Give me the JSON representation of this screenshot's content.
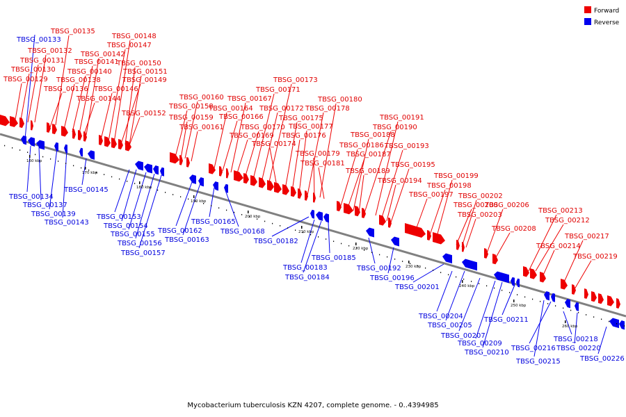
{
  "colors": {
    "forward": "#ee0000",
    "reverse": "#0000ee",
    "backbone": "#808080"
  },
  "legend": {
    "forward": "Forward",
    "reverse": "Reverse"
  },
  "caption": "Mycobacterium tuberculosis KZN 4207, complete genome. - 0..4394985",
  "ticks": [
    "160 kbp",
    "170 kbp",
    "180 kbp",
    "190 kbp",
    "200 kbp",
    "210 kbp",
    "220 kbp",
    "230 kbp",
    "240 kbp",
    "250 kbp",
    "260 kbp"
  ],
  "forward_labels": [
    "TBSG_00129",
    "TBSG_00130",
    "TBSG_00131",
    "TBSG_00132",
    "TBSG_00135",
    "TBSG_00136",
    "TBSG_00138",
    "TBSG_00140",
    "TBSG_00141",
    "TBSG_00142",
    "TBSG_00144",
    "TBSG_00146",
    "TBSG_00147",
    "TBSG_00148",
    "TBSG_00149",
    "TBSG_00150",
    "TBSG_00151",
    "TBSG_00152",
    "TBSG_00158",
    "TBSG_00159",
    "TBSG_00160",
    "TBSG_00161",
    "TBSG_00164",
    "TBSG_00166",
    "TBSG_00167",
    "TBSG_00169",
    "TBSG_00170",
    "TBSG_00171",
    "TBSG_00172",
    "TBSG_00173",
    "TBSG_00174",
    "TBSG_00175",
    "TBSG_00176",
    "TBSG_00177",
    "TBSG_00178",
    "TBSG_00179",
    "TBSG_00180",
    "TBSG_00181",
    "TBSG_00186",
    "TBSG_00187",
    "TBSG_00188",
    "TBSG_00189",
    "TBSG_00190",
    "TBSG_00191",
    "TBSG_00193",
    "TBSG_00194",
    "TBSG_00195",
    "TBSG_00197",
    "TBSG_00198",
    "TBSG_00199",
    "TBSG_00200",
    "TBSG_00202",
    "TBSG_00203",
    "TBSG_00206",
    "TBSG_00208",
    "TBSG_00212",
    "TBSG_00213",
    "TBSG_00214",
    "TBSG_00217",
    "TBSG_00219"
  ],
  "reverse_labels": [
    "TBSG_00133",
    "TBSG_00134",
    "TBSG_00137",
    "TBSG_00139",
    "TBSG_00143",
    "TBSG_00145",
    "TBSG_00153",
    "TBSG_00154",
    "TBSG_00155",
    "TBSG_00156",
    "TBSG_00157",
    "TBSG_00162",
    "TBSG_00163",
    "TBSG_00165",
    "TBSG_00168",
    "TBSG_00182",
    "TBSG_00183",
    "TBSG_00184",
    "TBSG_00185",
    "TBSG_00192",
    "TBSG_00196",
    "TBSG_00201",
    "TBSG_00204",
    "TBSG_00205",
    "TBSG_00207",
    "TBSG_00209",
    "TBSG_00210",
    "TBSG_00211",
    "TBSG_00215",
    "TBSG_00216",
    "TBSG_00218",
    "TBSG_00220",
    "TBSG_00226"
  ]
}
